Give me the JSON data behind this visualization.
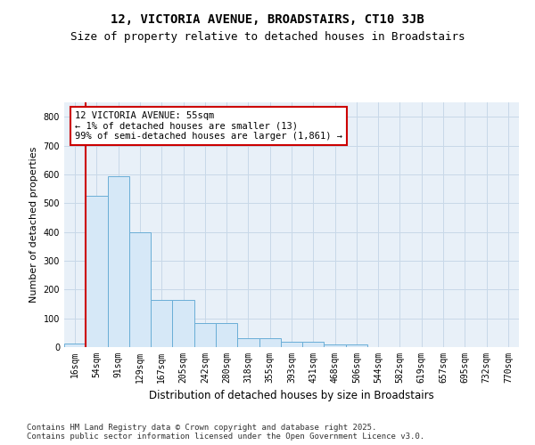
{
  "title": "12, VICTORIA AVENUE, BROADSTAIRS, CT10 3JB",
  "subtitle": "Size of property relative to detached houses in Broadstairs",
  "xlabel": "Distribution of detached houses by size in Broadstairs",
  "ylabel": "Number of detached properties",
  "bar_labels": [
    "16sqm",
    "54sqm",
    "91sqm",
    "129sqm",
    "167sqm",
    "205sqm",
    "242sqm",
    "280sqm",
    "318sqm",
    "355sqm",
    "393sqm",
    "431sqm",
    "468sqm",
    "506sqm",
    "544sqm",
    "582sqm",
    "619sqm",
    "657sqm",
    "695sqm",
    "732sqm",
    "770sqm"
  ],
  "bar_values": [
    13,
    527,
    592,
    400,
    163,
    163,
    85,
    85,
    30,
    30,
    20,
    20,
    10,
    10,
    0,
    0,
    0,
    0,
    0,
    0,
    0
  ],
  "bar_color": "#d6e8f7",
  "bar_edge_color": "#6aaed6",
  "vline_color": "#cc0000",
  "annotation_text": "12 VICTORIA AVENUE: 55sqm\n← 1% of detached houses are smaller (13)\n99% of semi-detached houses are larger (1,861) →",
  "annotation_box_color": "#ffffff",
  "annotation_box_edge": "#cc0000",
  "ylim": [
    0,
    850
  ],
  "yticks": [
    0,
    100,
    200,
    300,
    400,
    500,
    600,
    700,
    800
  ],
  "grid_color": "#c8d8e8",
  "bg_color": "#e8f0f8",
  "footer": "Contains HM Land Registry data © Crown copyright and database right 2025.\nContains public sector information licensed under the Open Government Licence v3.0.",
  "title_fontsize": 10,
  "subtitle_fontsize": 9,
  "xlabel_fontsize": 8.5,
  "ylabel_fontsize": 8,
  "tick_fontsize": 7,
  "annotation_fontsize": 7.5,
  "footer_fontsize": 6.5
}
